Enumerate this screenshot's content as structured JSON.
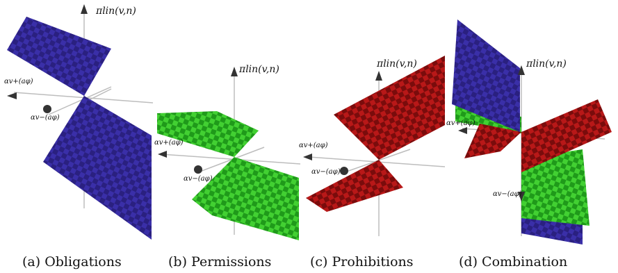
{
  "panels": [
    {
      "id": "a",
      "caption": "(a) Obligations",
      "axis_title": "πlin(v,n)",
      "alpha_plus": "αv+(aφ)",
      "alpha_minus": "αv−(aφ)"
    },
    {
      "id": "b",
      "caption": "(b) Permissions",
      "axis_title": "πlin(v,n)",
      "alpha_plus": "αv+(aφ)",
      "alpha_minus": "αv−(aφ)"
    },
    {
      "id": "c",
      "caption": "(c) Prohibitions",
      "axis_title": "πlin(v,n)",
      "alpha_plus": "αv+(aφ)",
      "alpha_minus": "αv−(aφ)"
    },
    {
      "id": "d",
      "caption": "(d) Combination",
      "axis_title": "πlin(v,n)",
      "alpha_plus": "αv+(aφ)",
      "alpha_minus": "αv−(aφ)"
    }
  ],
  "colors": {
    "obligation_a": "#3a2fa8",
    "obligation_b": "#2a2080",
    "permission_a": "#3fcf2f",
    "permission_b": "#1f9a1a",
    "prohibition_a": "#b81818",
    "prohibition_b": "#7a0c0c",
    "axis": "#b8b8b8"
  }
}
